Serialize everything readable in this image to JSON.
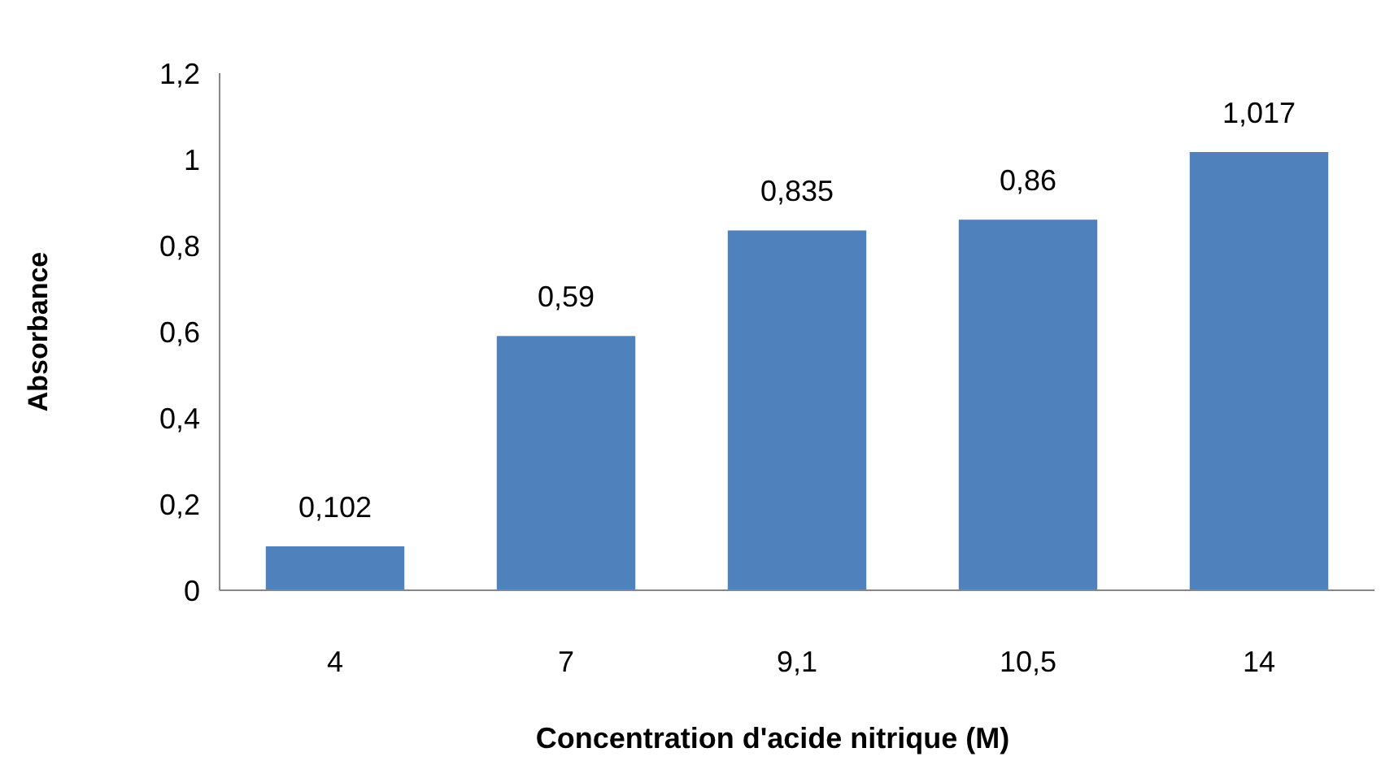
{
  "chart_data": {
    "type": "bar",
    "xlabel": "Concentration d'acide nitrique (M)",
    "ylabel": "Absorbance",
    "categories": [
      "4",
      "7",
      "9,1",
      "10,5",
      "14"
    ],
    "values": [
      0.102,
      0.59,
      0.835,
      0.86,
      1.017
    ],
    "value_labels": [
      "0,102",
      "0,59",
      "0,835",
      "0,86",
      "1,017"
    ],
    "color": "#4f81bd",
    "ylim": [
      0,
      1.2
    ],
    "yticks": [
      0,
      {
        "value": 0.2,
        "label": "0,2"
      },
      {
        "value": 0.4,
        "label": "0,4"
      },
      {
        "value": 0.6,
        "label": "0,6"
      },
      {
        "value": 0.8,
        "label": "0,8"
      },
      1,
      {
        "value": 1.2,
        "label": "1,2"
      }
    ],
    "grid": false
  }
}
